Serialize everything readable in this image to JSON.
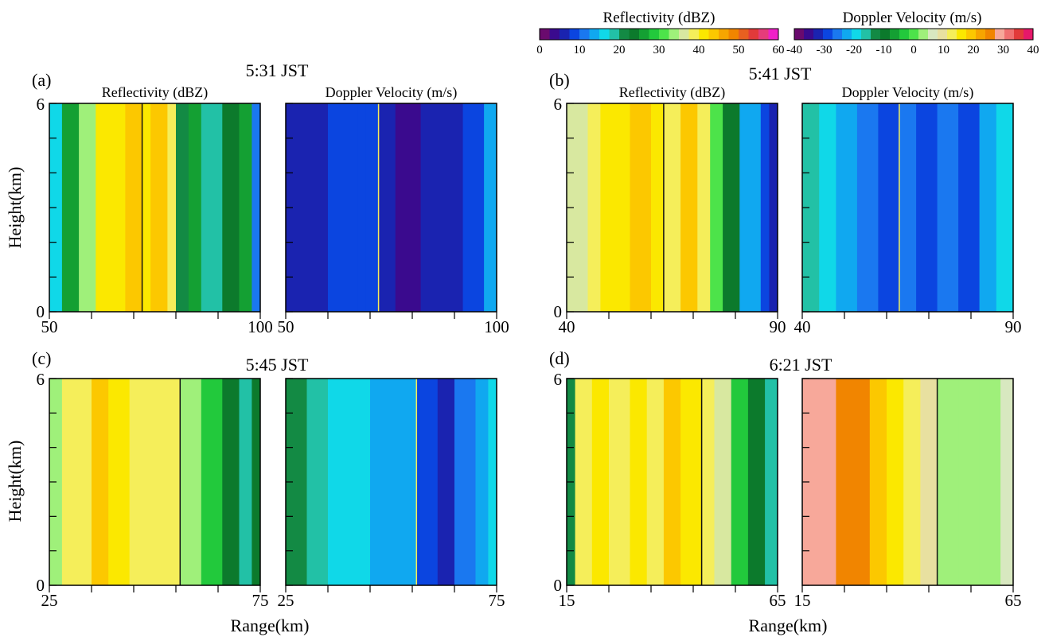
{
  "colorbars": {
    "reflectivity": {
      "title": "Reflectivity (dBZ)",
      "ticks": [
        "0",
        "10",
        "20",
        "30",
        "40",
        "50",
        "60"
      ],
      "range": [
        0,
        64
      ],
      "colors": [
        "#6a0a6e",
        "#3a0a8e",
        "#1a23b0",
        "#0b45e0",
        "#1a78f0",
        "#10a8f0",
        "#10d8e8",
        "#22c1a6",
        "#138a44",
        "#0c7a2c",
        "#14a033",
        "#22c93c",
        "#4de34a",
        "#9ff07a",
        "#d8e8a0",
        "#f5ee5a",
        "#fbe800",
        "#fcc800",
        "#f7a500",
        "#f18500",
        "#e86020",
        "#e23a3a",
        "#e63c7a",
        "#f020c8"
      ]
    },
    "velocity": {
      "title": "Doppler Velocity  (m/s)",
      "ticks": [
        "-40",
        "-30",
        "-20",
        "-10",
        "0",
        "10",
        "20",
        "30",
        "40"
      ],
      "range": [
        -40,
        40
      ],
      "colors": [
        "#6a0a6e",
        "#3a0a8e",
        "#1a23b0",
        "#0b45e0",
        "#1a78f0",
        "#10a8f0",
        "#10d8e8",
        "#22c1a6",
        "#138a44",
        "#0c7a2c",
        "#14a033",
        "#22c93c",
        "#4de34a",
        "#9ff07a",
        "#d8e8c0",
        "#e8e0a0",
        "#f5ee5a",
        "#fbe800",
        "#fcc800",
        "#f7a500",
        "#f18500",
        "#f7a89a",
        "#f07070",
        "#e23a3a",
        "#e6186a"
      ]
    }
  },
  "axes": {
    "ylabel": "Height(km)",
    "xlabel": "Range(km)",
    "y_ticks": [
      "0",
      "6"
    ]
  },
  "panels": [
    {
      "letter": "(a)",
      "time": "5:31 JST",
      "refl_title": "Reflectivity (dBZ)",
      "vel_title": "Doppler Velocity  (m/s)",
      "xticks": [
        "50",
        "100"
      ],
      "xlim": [
        50,
        100
      ],
      "ylim": [
        0,
        6
      ],
      "marker_range": 72,
      "refl_bands": [
        [
          50,
          18
        ],
        [
          53,
          28
        ],
        [
          57,
          36
        ],
        [
          61,
          44
        ],
        [
          68,
          47
        ],
        [
          72,
          44
        ],
        [
          74,
          47
        ],
        [
          78,
          40
        ],
        [
          80,
          22
        ],
        [
          83,
          28
        ],
        [
          86,
          20
        ],
        [
          91,
          24
        ],
        [
          95,
          28
        ],
        [
          98,
          12
        ]
      ],
      "vel_bands": [
        [
          50,
          -32
        ],
        [
          55,
          -32
        ],
        [
          60,
          -30
        ],
        [
          64,
          -28
        ],
        [
          67,
          -30
        ],
        [
          69,
          -28
        ],
        [
          72,
          -32
        ],
        [
          76,
          -36
        ],
        [
          82,
          -32
        ],
        [
          92,
          -28
        ],
        [
          97,
          -24
        ]
      ]
    },
    {
      "letter": "(b)",
      "time": "5:41 JST",
      "refl_title": "Reflectivity (dBZ)",
      "vel_title": "Doppler Velocity  (m/s)",
      "xticks": [
        "40",
        "90"
      ],
      "xlim": [
        40,
        90
      ],
      "ylim": [
        0,
        6
      ],
      "marker_range": 63,
      "refl_bands": [
        [
          40,
          38
        ],
        [
          45,
          40
        ],
        [
          48,
          44
        ],
        [
          55,
          46
        ],
        [
          60,
          44
        ],
        [
          63,
          42
        ],
        [
          67,
          46
        ],
        [
          71,
          40
        ],
        [
          74,
          34
        ],
        [
          77,
          24
        ],
        [
          81,
          14
        ],
        [
          86,
          10
        ],
        [
          88,
          6
        ]
      ],
      "vel_bands": [
        [
          40,
          -16
        ],
        [
          44,
          -18
        ],
        [
          48,
          -22
        ],
        [
          53,
          -26
        ],
        [
          58,
          -30
        ],
        [
          63,
          -27
        ],
        [
          67,
          -30
        ],
        [
          72,
          -26
        ],
        [
          77,
          -28
        ],
        [
          82,
          -24
        ],
        [
          86,
          -20
        ]
      ]
    },
    {
      "letter": "(c)",
      "time": "5:45 JST",
      "refl_title": "",
      "vel_title": "",
      "xticks": [
        "25",
        "75"
      ],
      "xlim": [
        25,
        75
      ],
      "ylim": [
        0,
        6
      ],
      "marker_range": 56,
      "refl_bands": [
        [
          25,
          36
        ],
        [
          28,
          40
        ],
        [
          31,
          42
        ],
        [
          35,
          46
        ],
        [
          39,
          44
        ],
        [
          44,
          40
        ],
        [
          50,
          42
        ],
        [
          56,
          36
        ],
        [
          61,
          30
        ],
        [
          66,
          24
        ],
        [
          70,
          20
        ],
        [
          73,
          26
        ]
      ],
      "vel_bands": [
        [
          25,
          -14
        ],
        [
          30,
          -16
        ],
        [
          35,
          -18
        ],
        [
          40,
          -20
        ],
        [
          45,
          -22
        ],
        [
          50,
          -24
        ],
        [
          56,
          -28
        ],
        [
          61,
          -31
        ],
        [
          65,
          -26
        ],
        [
          70,
          -22
        ],
        [
          73,
          -18
        ]
      ]
    },
    {
      "letter": "(d)",
      "time": "6:21 JST",
      "refl_title": "",
      "vel_title": "",
      "xticks": [
        "15",
        "65"
      ],
      "xlim": [
        15,
        65
      ],
      "ylim": [
        0,
        6
      ],
      "marker_range": 47,
      "refl_bands": [
        [
          15,
          22
        ],
        [
          17,
          40
        ],
        [
          21,
          44
        ],
        [
          25,
          42
        ],
        [
          30,
          44
        ],
        [
          34,
          42
        ],
        [
          38,
          46
        ],
        [
          42,
          44
        ],
        [
          47,
          42
        ],
        [
          50,
          38
        ],
        [
          54,
          30
        ],
        [
          58,
          26
        ],
        [
          62,
          20
        ]
      ],
      "vel_bands": [
        [
          15,
          30
        ],
        [
          19,
          28
        ],
        [
          23,
          26
        ],
        [
          27,
          24
        ],
        [
          31,
          20
        ],
        [
          35,
          16
        ],
        [
          39,
          12
        ],
        [
          43,
          8
        ],
        [
          47,
          4
        ],
        [
          52,
          2
        ],
        [
          57,
          4
        ],
        [
          62,
          6
        ]
      ]
    }
  ]
}
